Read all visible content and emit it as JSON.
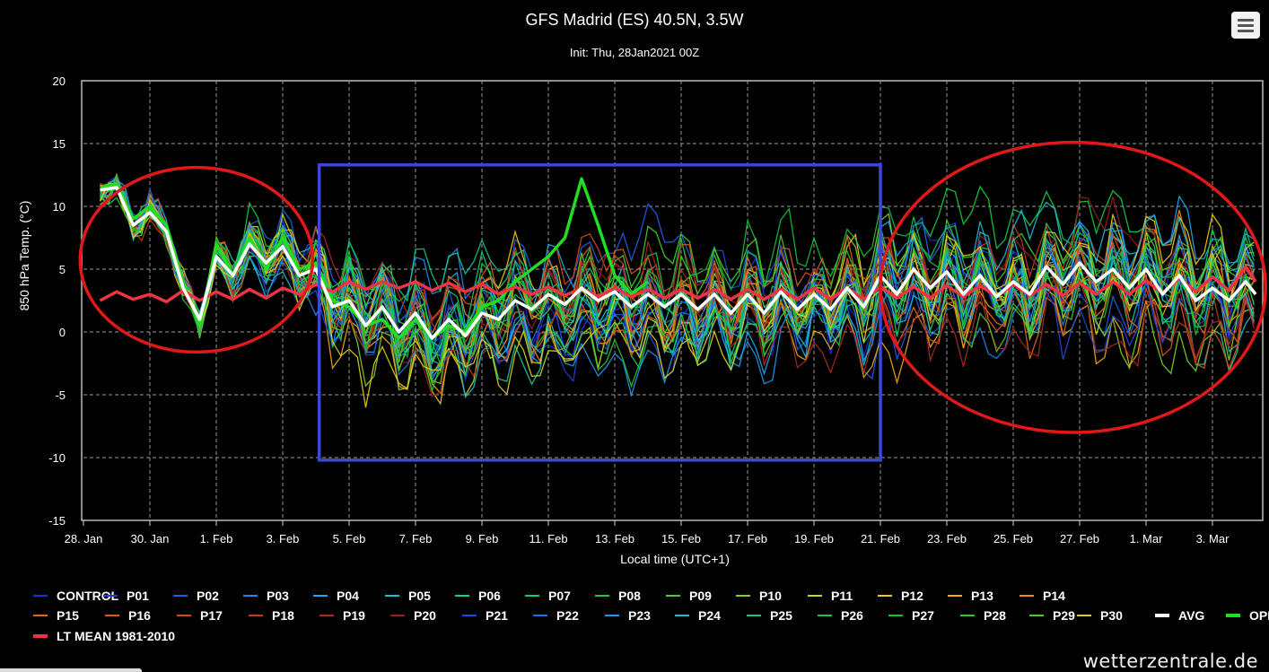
{
  "header": {
    "title": "GFS Madrid (ES) 40.5N, 3.5W",
    "subtitle": "Init: Thu, 28Jan2021 00Z"
  },
  "footer": {
    "watermark": "wetterzentrale.de"
  },
  "colors": {
    "background": "#000000",
    "avg": "#ffffff",
    "oper": "#22dd22",
    "ltmean": "#ee3344",
    "annotation_ellipse": "#e01818",
    "annotation_box": "#3b4ad0"
  },
  "chart_data": {
    "type": "line",
    "title": "GFS Madrid (ES) 40.5N, 3.5W",
    "subtitle": "Init: Thu, 28Jan2021 00Z",
    "xlabel": "Local time (UTC+1)",
    "ylabel": "850 hPa Temp. (°C)",
    "ylim": [
      -15,
      20
    ],
    "yticks": [
      -15,
      -10,
      -5,
      0,
      5,
      10,
      15,
      20
    ],
    "xlim": [
      0,
      35.5
    ],
    "xticks": [
      {
        "day": 0,
        "label": "28. Jan"
      },
      {
        "day": 2,
        "label": "30. Jan"
      },
      {
        "day": 4,
        "label": "1. Feb"
      },
      {
        "day": 6,
        "label": "3. Feb"
      },
      {
        "day": 8,
        "label": "5. Feb"
      },
      {
        "day": 10,
        "label": "7. Feb"
      },
      {
        "day": 12,
        "label": "9. Feb"
      },
      {
        "day": 14,
        "label": "11. Feb"
      },
      {
        "day": 16,
        "label": "13. Feb"
      },
      {
        "day": 18,
        "label": "15. Feb"
      },
      {
        "day": 20,
        "label": "17. Feb"
      },
      {
        "day": 22,
        "label": "19. Feb"
      },
      {
        "day": 24,
        "label": "21. Feb"
      },
      {
        "day": 26,
        "label": "23. Feb"
      },
      {
        "day": 28,
        "label": "25. Feb"
      },
      {
        "day": 30,
        "label": "27. Feb"
      },
      {
        "day": 32,
        "label": "1. Mar"
      },
      {
        "day": 34,
        "label": "3. Mar"
      }
    ],
    "grid": true,
    "legend_position": "bottom",
    "series_key": [
      {
        "name": "CONTROL",
        "color": "#1c2fc8"
      },
      {
        "name": "P01",
        "color": "#1f3ddb"
      },
      {
        "name": "P02",
        "color": "#1f5fe6"
      },
      {
        "name": "P03",
        "color": "#1e88ee"
      },
      {
        "name": "P04",
        "color": "#1aa8f0"
      },
      {
        "name": "P05",
        "color": "#16c4d8"
      },
      {
        "name": "P06",
        "color": "#14cf9c"
      },
      {
        "name": "P07",
        "color": "#12cf6a"
      },
      {
        "name": "P08",
        "color": "#18cc3e"
      },
      {
        "name": "P09",
        "color": "#3fd22a"
      },
      {
        "name": "P10",
        "color": "#7ad624"
      },
      {
        "name": "P11",
        "color": "#c6dc22"
      },
      {
        "name": "P12",
        "color": "#f0c818"
      },
      {
        "name": "P13",
        "color": "#eeaa18"
      },
      {
        "name": "P14",
        "color": "#e88c18"
      },
      {
        "name": "P15",
        "color": "#dd6c1a"
      },
      {
        "name": "P16",
        "color": "#d95a1c"
      },
      {
        "name": "P17",
        "color": "#cf4a1e"
      },
      {
        "name": "P18",
        "color": "#bf3a22"
      },
      {
        "name": "P19",
        "color": "#a82a24"
      },
      {
        "name": "P20",
        "color": "#941e26"
      },
      {
        "name": "P21",
        "color": "#1f48e2"
      },
      {
        "name": "P22",
        "color": "#1f6fe8"
      },
      {
        "name": "P23",
        "color": "#1c9aee"
      },
      {
        "name": "P24",
        "color": "#19bcd0"
      },
      {
        "name": "P25",
        "color": "#15c88a"
      },
      {
        "name": "P26",
        "color": "#13c55a"
      },
      {
        "name": "P27",
        "color": "#16c238"
      },
      {
        "name": "P28",
        "color": "#2cc52c"
      },
      {
        "name": "P29",
        "color": "#52c826"
      },
      {
        "name": "P30",
        "color": "#dcd020"
      },
      {
        "name": "AVG",
        "color": "#ffffff"
      },
      {
        "name": "OPER",
        "color": "#22dd22"
      },
      {
        "name": "LT MEAN 1981-2010",
        "color": "#ee3344"
      }
    ],
    "avg": [
      {
        "day": 0.5,
        "value": 11.3
      },
      {
        "day": 1.0,
        "value": 11.5
      },
      {
        "day": 1.5,
        "value": 8.5
      },
      {
        "day": 2.0,
        "value": 9.5
      },
      {
        "day": 2.5,
        "value": 8.0
      },
      {
        "day": 3.0,
        "value": 3.5
      },
      {
        "day": 3.5,
        "value": 1.0
      },
      {
        "day": 4.0,
        "value": 6.0
      },
      {
        "day": 4.5,
        "value": 4.5
      },
      {
        "day": 5.0,
        "value": 7.0
      },
      {
        "day": 5.5,
        "value": 5.5
      },
      {
        "day": 6.0,
        "value": 6.8
      },
      {
        "day": 6.5,
        "value": 4.5
      },
      {
        "day": 7.0,
        "value": 5.0
      },
      {
        "day": 7.5,
        "value": 2.0
      },
      {
        "day": 8.0,
        "value": 2.5
      },
      {
        "day": 8.5,
        "value": 0.5
      },
      {
        "day": 9.0,
        "value": 2.0
      },
      {
        "day": 9.5,
        "value": 0.0
      },
      {
        "day": 10.0,
        "value": 1.5
      },
      {
        "day": 10.5,
        "value": -0.5
      },
      {
        "day": 11.0,
        "value": 1.0
      },
      {
        "day": 11.5,
        "value": -0.3
      },
      {
        "day": 12.0,
        "value": 1.5
      },
      {
        "day": 12.5,
        "value": 1.0
      },
      {
        "day": 13.0,
        "value": 2.5
      },
      {
        "day": 13.5,
        "value": 1.8
      },
      {
        "day": 14.0,
        "value": 3.0
      },
      {
        "day": 14.5,
        "value": 2.2
      },
      {
        "day": 15.0,
        "value": 3.5
      },
      {
        "day": 15.5,
        "value": 2.5
      },
      {
        "day": 16.0,
        "value": 3.2
      },
      {
        "day": 16.5,
        "value": 2.0
      },
      {
        "day": 17.0,
        "value": 3.0
      },
      {
        "day": 17.5,
        "value": 2.0
      },
      {
        "day": 18.0,
        "value": 3.0
      },
      {
        "day": 18.5,
        "value": 1.8
      },
      {
        "day": 19.0,
        "value": 3.0
      },
      {
        "day": 19.5,
        "value": 1.5
      },
      {
        "day": 20.0,
        "value": 3.0
      },
      {
        "day": 20.5,
        "value": 1.5
      },
      {
        "day": 21.0,
        "value": 3.2
      },
      {
        "day": 21.5,
        "value": 1.8
      },
      {
        "day": 22.0,
        "value": 3.0
      },
      {
        "day": 22.5,
        "value": 1.8
      },
      {
        "day": 23.0,
        "value": 3.5
      },
      {
        "day": 23.5,
        "value": 2.0
      },
      {
        "day": 24.0,
        "value": 4.5
      },
      {
        "day": 24.5,
        "value": 3.0
      },
      {
        "day": 25.0,
        "value": 5.0
      },
      {
        "day": 25.5,
        "value": 3.5
      },
      {
        "day": 26.0,
        "value": 4.8
      },
      {
        "day": 26.5,
        "value": 3.0
      },
      {
        "day": 27.0,
        "value": 4.5
      },
      {
        "day": 27.5,
        "value": 2.8
      },
      {
        "day": 28.0,
        "value": 4.0
      },
      {
        "day": 28.5,
        "value": 3.0
      },
      {
        "day": 29.0,
        "value": 5.2
      },
      {
        "day": 29.5,
        "value": 3.8
      },
      {
        "day": 30.0,
        "value": 5.5
      },
      {
        "day": 30.5,
        "value": 4.0
      },
      {
        "day": 31.0,
        "value": 5.0
      },
      {
        "day": 31.5,
        "value": 3.5
      },
      {
        "day": 32.0,
        "value": 5.0
      },
      {
        "day": 32.5,
        "value": 3.0
      },
      {
        "day": 33.0,
        "value": 4.5
      },
      {
        "day": 33.5,
        "value": 2.5
      },
      {
        "day": 34.0,
        "value": 3.5
      },
      {
        "day": 34.5,
        "value": 2.5
      },
      {
        "day": 35.0,
        "value": 4.0
      },
      {
        "day": 35.3,
        "value": 3.0
      }
    ],
    "oper": [
      {
        "day": 0.5,
        "value": 11.5
      },
      {
        "day": 1.0,
        "value": 11.8
      },
      {
        "day": 1.5,
        "value": 9.0
      },
      {
        "day": 2.0,
        "value": 10.0
      },
      {
        "day": 2.5,
        "value": 8.5
      },
      {
        "day": 3.0,
        "value": 4.0
      },
      {
        "day": 3.5,
        "value": 0.5
      },
      {
        "day": 4.0,
        "value": 7.0
      },
      {
        "day": 4.5,
        "value": 4.5
      },
      {
        "day": 5.0,
        "value": 7.5
      },
      {
        "day": 5.5,
        "value": 5.0
      },
      {
        "day": 6.0,
        "value": 7.5
      },
      {
        "day": 6.5,
        "value": 5.0
      },
      {
        "day": 7.0,
        "value": 5.5
      },
      {
        "day": 7.5,
        "value": 2.5
      },
      {
        "day": 8.0,
        "value": 2.0
      },
      {
        "day": 8.5,
        "value": 0.5
      },
      {
        "day": 9.0,
        "value": 1.0
      },
      {
        "day": 9.5,
        "value": -0.5
      },
      {
        "day": 10.0,
        "value": 1.0
      },
      {
        "day": 10.5,
        "value": -0.5
      },
      {
        "day": 11.0,
        "value": 0.5
      },
      {
        "day": 11.5,
        "value": 0.0
      },
      {
        "day": 12.0,
        "value": 2.0
      },
      {
        "day": 12.5,
        "value": 2.5
      },
      {
        "day": 13.0,
        "value": 4.0
      },
      {
        "day": 13.5,
        "value": 5.0
      },
      {
        "day": 14.0,
        "value": 6.0
      },
      {
        "day": 14.5,
        "value": 7.5
      },
      {
        "day": 15.0,
        "value": 12.2
      },
      {
        "day": 15.5,
        "value": 8.5
      },
      {
        "day": 16.0,
        "value": 4.5
      },
      {
        "day": 16.5,
        "value": 3.0
      },
      {
        "day": 17.0,
        "value": 4.0
      }
    ],
    "lt_mean": [
      {
        "day": 0.5,
        "value": 2.5
      },
      {
        "day": 1.0,
        "value": 3.2
      },
      {
        "day": 1.5,
        "value": 2.6
      },
      {
        "day": 2.0,
        "value": 3.0
      },
      {
        "day": 2.5,
        "value": 2.4
      },
      {
        "day": 3.0,
        "value": 3.3
      },
      {
        "day": 3.5,
        "value": 2.5
      },
      {
        "day": 4.0,
        "value": 3.2
      },
      {
        "day": 4.5,
        "value": 2.6
      },
      {
        "day": 5.0,
        "value": 3.4
      },
      {
        "day": 5.5,
        "value": 2.7
      },
      {
        "day": 6.0,
        "value": 3.5
      },
      {
        "day": 6.5,
        "value": 3.0
      },
      {
        "day": 7.0,
        "value": 3.8
      },
      {
        "day": 7.5,
        "value": 3.2
      },
      {
        "day": 8.0,
        "value": 4.0
      },
      {
        "day": 8.5,
        "value": 3.4
      },
      {
        "day": 9.0,
        "value": 4.0
      },
      {
        "day": 9.5,
        "value": 3.5
      },
      {
        "day": 10.0,
        "value": 4.0
      },
      {
        "day": 10.5,
        "value": 3.3
      },
      {
        "day": 11.0,
        "value": 3.9
      },
      {
        "day": 11.5,
        "value": 3.2
      },
      {
        "day": 12.0,
        "value": 3.8
      },
      {
        "day": 12.5,
        "value": 3.0
      },
      {
        "day": 13.0,
        "value": 3.6
      },
      {
        "day": 13.5,
        "value": 3.0
      },
      {
        "day": 14.0,
        "value": 3.6
      },
      {
        "day": 14.5,
        "value": 2.9
      },
      {
        "day": 15.0,
        "value": 3.5
      },
      {
        "day": 15.5,
        "value": 2.8
      },
      {
        "day": 16.0,
        "value": 3.5
      },
      {
        "day": 16.5,
        "value": 2.8
      },
      {
        "day": 17.0,
        "value": 3.4
      },
      {
        "day": 17.5,
        "value": 2.7
      },
      {
        "day": 18.0,
        "value": 3.4
      },
      {
        "day": 18.5,
        "value": 2.7
      },
      {
        "day": 19.0,
        "value": 3.4
      },
      {
        "day": 19.5,
        "value": 2.6
      },
      {
        "day": 20.0,
        "value": 3.4
      },
      {
        "day": 20.5,
        "value": 2.6
      },
      {
        "day": 21.0,
        "value": 3.4
      },
      {
        "day": 21.5,
        "value": 2.6
      },
      {
        "day": 22.0,
        "value": 3.5
      },
      {
        "day": 22.5,
        "value": 2.6
      },
      {
        "day": 23.0,
        "value": 3.5
      },
      {
        "day": 23.5,
        "value": 2.6
      },
      {
        "day": 24.0,
        "value": 3.6
      },
      {
        "day": 24.5,
        "value": 2.7
      },
      {
        "day": 25.0,
        "value": 3.6
      },
      {
        "day": 25.5,
        "value": 2.7
      },
      {
        "day": 26.0,
        "value": 3.7
      },
      {
        "day": 26.5,
        "value": 2.8
      },
      {
        "day": 27.0,
        "value": 3.7
      },
      {
        "day": 27.5,
        "value": 2.8
      },
      {
        "day": 28.0,
        "value": 3.8
      },
      {
        "day": 28.5,
        "value": 2.9
      },
      {
        "day": 29.0,
        "value": 3.8
      },
      {
        "day": 29.5,
        "value": 2.9
      },
      {
        "day": 30.0,
        "value": 3.9
      },
      {
        "day": 30.5,
        "value": 3.0
      },
      {
        "day": 31.0,
        "value": 4.0
      },
      {
        "day": 31.5,
        "value": 3.0
      },
      {
        "day": 32.0,
        "value": 4.1
      },
      {
        "day": 32.5,
        "value": 3.1
      },
      {
        "day": 33.0,
        "value": 4.3
      },
      {
        "day": 33.5,
        "value": 3.2
      },
      {
        "day": 34.0,
        "value": 4.4
      },
      {
        "day": 34.5,
        "value": 3.3
      },
      {
        "day": 35.0,
        "value": 5.2
      },
      {
        "day": 35.3,
        "value": 4.0
      }
    ],
    "annotations": [
      {
        "shape": "ellipse",
        "color": "#e01818",
        "day_range": [
          -0.1,
          6.9
        ],
        "value_range": [
          -1.6,
          13.1
        ]
      },
      {
        "shape": "rectangle",
        "color": "#3b4ad0",
        "day_range": [
          7.1,
          24.0
        ],
        "value_range": [
          -10.2,
          13.3
        ]
      },
      {
        "shape": "ellipse",
        "color": "#e01818",
        "day_range": [
          24.0,
          35.6
        ],
        "value_range": [
          -8.0,
          15.1
        ]
      }
    ]
  }
}
